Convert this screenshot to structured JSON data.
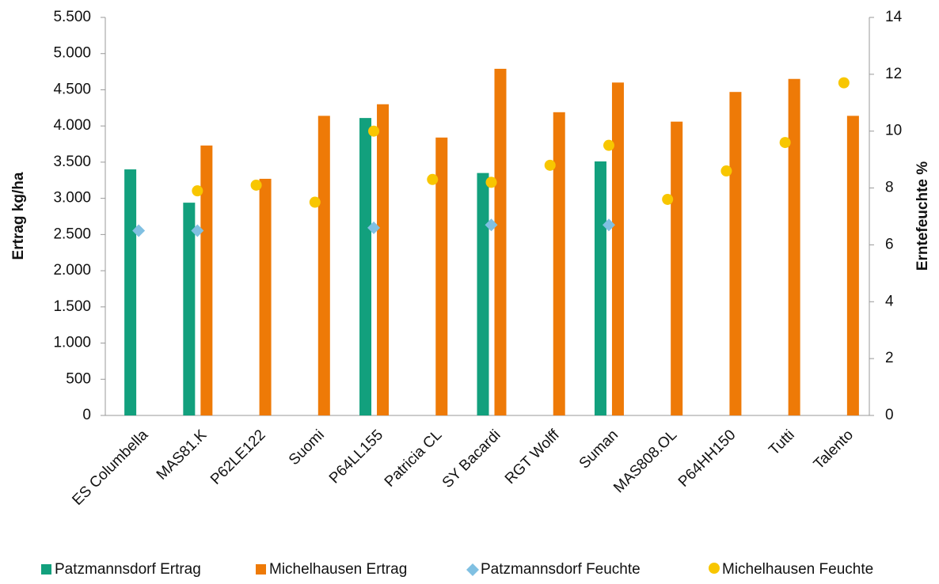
{
  "chart_data": {
    "type": "bar",
    "ylabel": "Ertrag kg/ha",
    "y2label": "Erntefeuchte %",
    "categories": [
      "ES Columbella",
      "MAS81.K",
      "P62LE122",
      "Suomi",
      "P64LL155",
      "Patricia CL",
      "SY Bacardi",
      "RGT Wolff",
      "Suman",
      "MAS808.OL",
      "P64HH150",
      "Tutti",
      "Talento"
    ],
    "series": [
      {
        "name": "Patzmannsdorf Ertrag",
        "type": "bar",
        "color": "#12a07d",
        "values": [
          3400,
          2940,
          null,
          null,
          4110,
          null,
          3350,
          null,
          3510,
          null,
          null,
          null,
          null
        ]
      },
      {
        "name": "Michelhausen Ertrag",
        "type": "bar",
        "color": "#ee7a07",
        "values": [
          null,
          3730,
          3270,
          4140,
          4300,
          3840,
          4790,
          4190,
          4600,
          4060,
          4470,
          4650,
          4140
        ]
      },
      {
        "name": "Patzmannsdorf Feuchte",
        "type": "diamond",
        "axis": "y2",
        "color": "#80c0e2",
        "values": [
          6.5,
          6.5,
          null,
          null,
          6.6,
          null,
          6.7,
          null,
          6.7,
          null,
          null,
          null,
          null
        ]
      },
      {
        "name": "Michelhausen Feuchte",
        "type": "circle",
        "axis": "y2",
        "color": "#f8c600",
        "values": [
          null,
          7.9,
          8.1,
          7.5,
          10.0,
          8.3,
          8.2,
          8.8,
          9.5,
          7.6,
          8.6,
          9.6,
          11.7
        ]
      }
    ],
    "ylim": [
      0,
      5500
    ],
    "yticks": [
      0,
      500,
      {
        "value": 1000,
        "label": "1.000"
      },
      {
        "value": 1500,
        "label": "1.500"
      },
      {
        "value": 2000,
        "label": "2.000"
      },
      {
        "value": 2500,
        "label": "2.500"
      },
      {
        "value": 3000,
        "label": "3.000"
      },
      {
        "value": 3500,
        "label": "3.500"
      },
      {
        "value": 4000,
        "label": "4.000"
      },
      {
        "value": 4500,
        "label": "4.500"
      },
      {
        "value": 5000,
        "label": "5.000"
      },
      {
        "value": 5500,
        "label": "5.500"
      }
    ],
    "y2lim": [
      0,
      14
    ],
    "y2ticks": [
      0,
      2,
      4,
      6,
      8,
      10,
      12,
      14
    ],
    "legend": "bottom"
  }
}
